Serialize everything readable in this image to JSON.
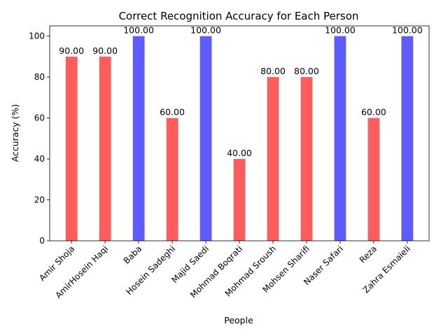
{
  "chart_data": {
    "type": "bar",
    "title": "Correct Recognition Accuracy for Each Person",
    "xlabel": "People",
    "ylabel": "Accuracy (%)",
    "ylim": [
      0,
      105
    ],
    "yticks": [
      0,
      20,
      40,
      60,
      80,
      100
    ],
    "grid": false,
    "legend": "none",
    "categories": [
      "Amir Shoja",
      "AmirHosein Haqi",
      "Baba",
      "Hosein Sadeghi",
      "Majid Saedi",
      "Mohmad Boqrati",
      "Mohmad Sroush",
      "Mohsen Sharifi",
      "Naser Safari",
      "Reza",
      "Zahra  Esmaieli"
    ],
    "values": [
      90,
      90,
      100,
      60,
      100,
      40,
      80,
      80,
      100,
      60,
      100
    ],
    "data_labels": [
      "90.00",
      "90.00",
      "100.00",
      "60.00",
      "100.00",
      "40.00",
      "80.00",
      "80.00",
      "100.00",
      "60.00",
      "100.00"
    ],
    "bar_colors": [
      "#ff3333",
      "#ff3333",
      "#3333ff",
      "#ff3333",
      "#3333ff",
      "#ff3333",
      "#ff3333",
      "#ff3333",
      "#3333ff",
      "#ff3333",
      "#3333ff"
    ]
  }
}
